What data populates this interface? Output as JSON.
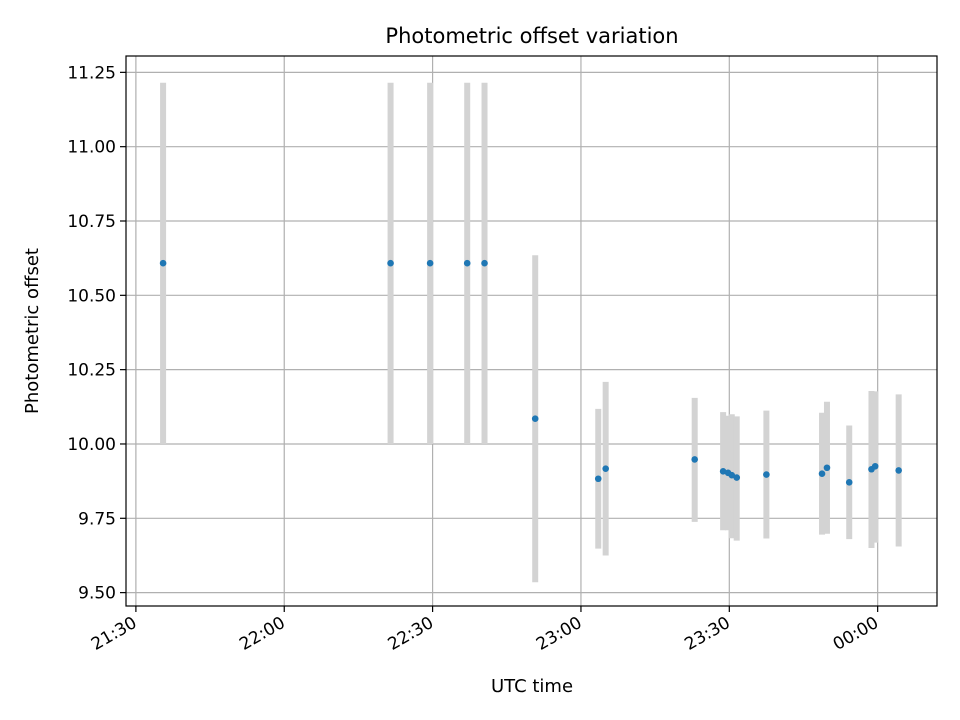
{
  "chart_data": {
    "type": "scatter",
    "title": "Photometric offset variation",
    "xlabel": "UTC time",
    "ylabel": "Photometric offset",
    "x_ticks": [
      "21:30",
      "22:00",
      "22:30",
      "23:00",
      "23:30",
      "00:00"
    ],
    "y_ticks": [
      "9.50",
      "9.75",
      "10.00",
      "10.25",
      "10.50",
      "10.75",
      "11.00",
      "11.25"
    ],
    "xlim": [
      "21:28",
      "00:12"
    ],
    "ylim": [
      9.455,
      11.305
    ],
    "grid": true,
    "legend": "none",
    "colors": {
      "point": "#1f77b4",
      "error_bar": "#d3d3d3",
      "grid": "#b0b0b0"
    },
    "points": [
      {
        "time": "21:35:30",
        "offset": 10.608,
        "err_low": 10.0,
        "err_high": 11.215
      },
      {
        "time": "22:21:30",
        "offset": 10.608,
        "err_low": 10.0,
        "err_high": 11.215
      },
      {
        "time": "22:29:30",
        "offset": 10.608,
        "err_low": 10.0,
        "err_high": 11.215
      },
      {
        "time": "22:37:00",
        "offset": 10.608,
        "err_low": 10.0,
        "err_high": 11.215
      },
      {
        "time": "22:40:30",
        "offset": 10.608,
        "err_low": 10.0,
        "err_high": 11.215
      },
      {
        "time": "22:50:45",
        "offset": 10.085,
        "err_low": 9.535,
        "err_high": 10.635
      },
      {
        "time": "23:03:30",
        "offset": 9.883,
        "err_low": 9.648,
        "err_high": 10.118
      },
      {
        "time": "23:05:00",
        "offset": 9.917,
        "err_low": 9.625,
        "err_high": 10.209
      },
      {
        "time": "23:23:00",
        "offset": 9.948,
        "err_low": 9.738,
        "err_high": 10.155
      },
      {
        "time": "23:28:45",
        "offset": 9.908,
        "err_low": 9.71,
        "err_high": 10.107
      },
      {
        "time": "23:29:45",
        "offset": 9.903,
        "err_low": 9.71,
        "err_high": 10.095
      },
      {
        "time": "23:30:30",
        "offset": 9.895,
        "err_low": 9.683,
        "err_high": 10.1
      },
      {
        "time": "23:31:30",
        "offset": 9.887,
        "err_low": 9.675,
        "err_high": 10.093
      },
      {
        "time": "23:37:30",
        "offset": 9.897,
        "err_low": 9.682,
        "err_high": 10.112
      },
      {
        "time": "23:48:45",
        "offset": 9.9,
        "err_low": 9.695,
        "err_high": 10.105
      },
      {
        "time": "23:49:45",
        "offset": 9.92,
        "err_low": 9.698,
        "err_high": 10.142
      },
      {
        "time": "23:54:15",
        "offset": 9.871,
        "err_low": 9.68,
        "err_high": 10.062
      },
      {
        "time": "23:58:45",
        "offset": 9.915,
        "err_low": 9.65,
        "err_high": 10.178
      },
      {
        "time": "23:59:30",
        "offset": 9.925,
        "err_low": 9.668,
        "err_high": 10.177
      },
      {
        "time": "00:04:15",
        "offset": 9.911,
        "err_low": 9.655,
        "err_high": 10.167
      }
    ]
  }
}
